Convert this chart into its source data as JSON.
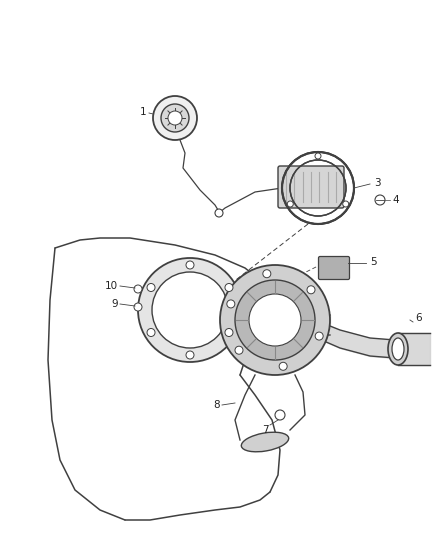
{
  "bg_color": "#ffffff",
  "line_color": "#404040",
  "label_color": "#222222",
  "fig_width": 4.38,
  "fig_height": 5.33,
  "dpi": 100,
  "panel_color": "#e0e0e0",
  "parts_gray": "#c8c8c8",
  "dark_gray": "#888888"
}
